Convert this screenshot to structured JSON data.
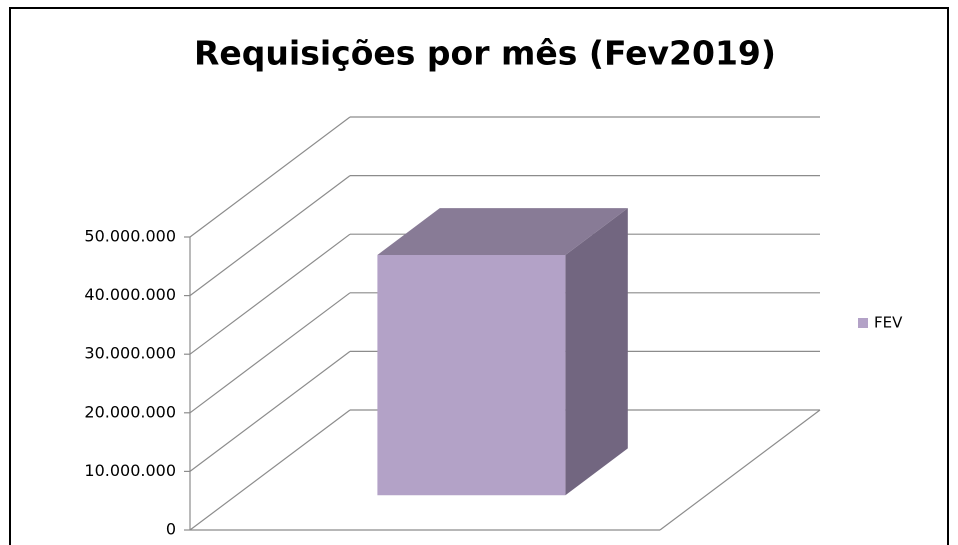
{
  "chart_data": {
    "type": "bar3d",
    "title": "Requisições por mês (Fev2019)",
    "categories": [
      null
    ],
    "series": [
      {
        "name": "FEV",
        "color": "#b3a2c7",
        "values": [
          41000000
        ]
      }
    ],
    "ylim": [
      0,
      50000000
    ],
    "yticks": [
      0,
      {
        "value": 10000000,
        "label": "10.000.000"
      },
      {
        "value": 20000000,
        "label": "20.000.000"
      },
      {
        "value": 30000000,
        "label": "30.000.000"
      },
      {
        "value": 40000000,
        "label": "40.000.000"
      },
      {
        "value": 50000000,
        "label": "50.000.000"
      }
    ],
    "grid": true,
    "legend": "right"
  }
}
